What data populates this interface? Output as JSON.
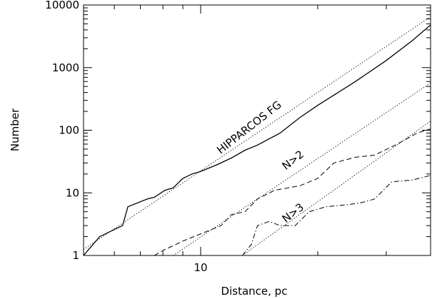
{
  "chart_data": {
    "type": "line",
    "title": "",
    "xlabel": "Distance, pc",
    "ylabel": "Number",
    "xscale": "log",
    "yscale": "log",
    "xlim": [
      5.0,
      39.0
    ],
    "ylim": [
      1,
      10000
    ],
    "x_ticks": [
      {
        "value": 10,
        "label": "10"
      }
    ],
    "y_ticks": [
      {
        "value": 1,
        "label": "1"
      },
      {
        "value": 10,
        "label": "10"
      },
      {
        "value": 100,
        "label": "100"
      },
      {
        "value": 1000,
        "label": "1000"
      },
      {
        "value": 10000,
        "label": "10000"
      }
    ],
    "grid": false,
    "legend": "none",
    "series": [
      {
        "id": "hipparcos",
        "style": "solid",
        "x": [
          5.0,
          5.5,
          6.3,
          6.5,
          7.3,
          7.6,
          8.1,
          8.5,
          9.0,
          9.5,
          10.0,
          11.0,
          12.0,
          13.0,
          14.0,
          16.0,
          18.0,
          20.0,
          25.0,
          30.0,
          35.0,
          39.0
        ],
        "y": [
          1.0,
          2.0,
          3.0,
          6.0,
          8.0,
          8.5,
          11.0,
          12.0,
          17.0,
          20.0,
          22.0,
          28.0,
          36.0,
          48.0,
          58.0,
          90.0,
          160.0,
          250.0,
          600.0,
          1300.0,
          2700.0,
          4800.0
        ]
      },
      {
        "id": "n-gt-2",
        "style": "dashed",
        "x": [
          7.6,
          8.0,
          9.0,
          10.5,
          11.3,
          12.0,
          13.0,
          14.0,
          15.5,
          18.0,
          20.0,
          22.0,
          25.0,
          28.0,
          32.0,
          36.0,
          39.0
        ],
        "y": [
          1.0,
          1.2,
          1.7,
          2.5,
          3.0,
          4.5,
          5.0,
          8.0,
          11.0,
          13.0,
          17.0,
          30.0,
          37.0,
          40.0,
          60.0,
          90.0,
          105.0
        ]
      },
      {
        "id": "n-gt-3",
        "style": "dashdot",
        "x": [
          12.8,
          13.5,
          14.0,
          15.0,
          16.0,
          17.5,
          19.0,
          21.0,
          24.0,
          26.0,
          28.0,
          31.0,
          35.0,
          39.0
        ],
        "y": [
          1.0,
          1.5,
          3.0,
          3.5,
          3.0,
          3.0,
          5.0,
          6.0,
          6.5,
          7.0,
          8.0,
          15.0,
          16.0,
          19.0
        ]
      },
      {
        "id": "fit-hipparcos",
        "style": "dotted",
        "x": [
          5.0,
          39.0
        ],
        "y": [
          1.25,
          6500.0
        ]
      },
      {
        "id": "fit-n-gt-2",
        "style": "dotted",
        "x": [
          8.5,
          39.0
        ],
        "y": [
          1.0,
          570.0
        ]
      },
      {
        "id": "fit-n-gt-3",
        "style": "dotted",
        "x": [
          12.8,
          39.0
        ],
        "y": [
          1.0,
          140.0
        ]
      }
    ],
    "annotations": [
      {
        "text": "HIPPARCOS FG",
        "x": 13.5,
        "y": 100.0,
        "angle_deg": -38
      },
      {
        "text": "N>2",
        "x": 17.5,
        "y": 30.0,
        "angle_deg": -38
      },
      {
        "text": "N>3",
        "x": 17.5,
        "y": 4.3,
        "angle_deg": -38
      }
    ]
  }
}
